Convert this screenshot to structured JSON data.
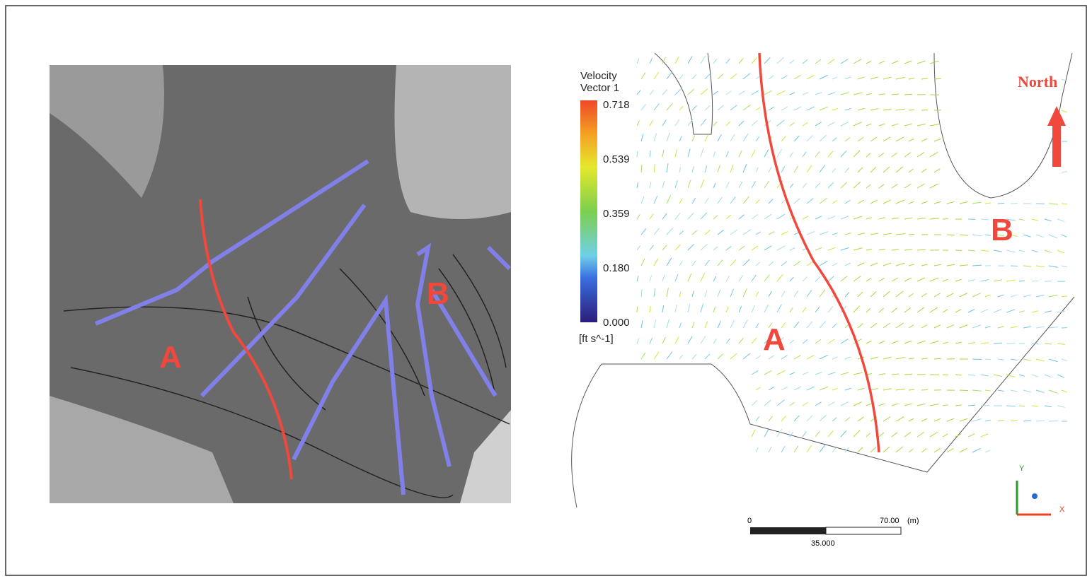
{
  "left_panel": {
    "labels": [
      "A",
      "B"
    ]
  },
  "right_panel": {
    "legend": {
      "title": [
        "Velocity",
        "Vector 1"
      ],
      "ticks": [
        "0.718",
        "0.539",
        "0.359",
        "0.180",
        "0.000"
      ],
      "unit": "[ft s^-1]"
    },
    "labels": [
      "A",
      "B"
    ],
    "north": "North",
    "scale_bar": {
      "start": "0",
      "end": "70.00",
      "unit": "(m)",
      "middle": "35.000"
    },
    "axes": {
      "y": "Y",
      "x": "X"
    }
  }
}
